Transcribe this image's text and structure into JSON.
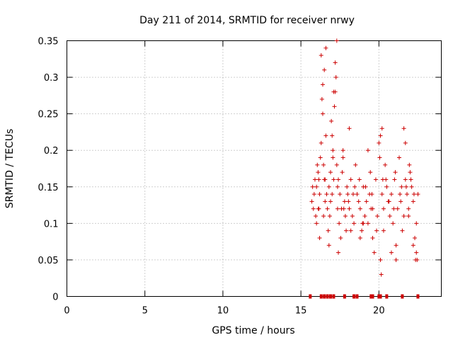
{
  "chart_data": {
    "type": "scatter",
    "title": "Day 211 of 2014, SRMTID for receiver nrwy",
    "xlabel": "GPS time / hours",
    "ylabel": "SRMTID / TECUs",
    "xlim": [
      0,
      24
    ],
    "ylim": [
      0,
      0.35
    ],
    "x_ticks": [
      0,
      5,
      10,
      15,
      20
    ],
    "y_ticks": [
      0,
      0.05,
      0.1,
      0.15,
      0.2,
      0.25,
      0.3,
      0.35
    ],
    "x_tick_labels": [
      "0",
      "5",
      "10",
      "15",
      "20"
    ],
    "y_tick_labels": [
      "0",
      "0.05",
      "0.1",
      "0.15",
      "0.2",
      "0.25",
      "0.3",
      "0.35"
    ],
    "grid": true,
    "marker": "+",
    "color": "#cc0000",
    "baseline_color": "#cc0000",
    "baseline_x": [
      15.6,
      16.3,
      16.5,
      16.7,
      16.9,
      17.1,
      17.8,
      18.4,
      18.6,
      19.5,
      19.6,
      20.0,
      20.1,
      20.5,
      21.5,
      22.5
    ],
    "series": [
      {
        "name": "SRMTID",
        "x": [
          15.7,
          15.8,
          15.85,
          15.9,
          15.95,
          16.0,
          16.05,
          16.1,
          16.12,
          16.15,
          16.2,
          16.25,
          16.3,
          16.35,
          16.4,
          16.45,
          16.5,
          16.55,
          16.6,
          16.65,
          16.7,
          16.75,
          16.8,
          16.85,
          16.9,
          16.95,
          17.0,
          17.05,
          17.1,
          17.15,
          17.2,
          17.25,
          17.3,
          17.35,
          17.4,
          17.45,
          17.5,
          17.55,
          17.6,
          17.7,
          17.8,
          17.85,
          17.9,
          17.95,
          18.0,
          18.1,
          18.2,
          18.3,
          18.4,
          18.5,
          18.6,
          18.7,
          18.8,
          18.9,
          19.0,
          19.1,
          19.2,
          19.3,
          19.4,
          19.5,
          19.6,
          19.7,
          19.8,
          19.9,
          20.0,
          20.05,
          20.1,
          20.15,
          20.2,
          20.3,
          20.4,
          20.5,
          20.6,
          20.7,
          20.8,
          20.9,
          21.0,
          21.1,
          21.2,
          21.3,
          21.4,
          21.5,
          21.6,
          21.7,
          21.8,
          21.9,
          22.0,
          22.1,
          22.2,
          22.3,
          22.4,
          22.5,
          16.3,
          16.6,
          17.2,
          17.3,
          17.1,
          16.5,
          16.4,
          17.0,
          18.1,
          19.3,
          20.1,
          20.2,
          21.6,
          21.7,
          16.0,
          16.2,
          16.8,
          17.4,
          17.7,
          18.2,
          18.8,
          19.0,
          19.6,
          20.3,
          20.8,
          21.1,
          21.9,
          22.2,
          22.35,
          22.45,
          15.75,
          16.15,
          16.55,
          17.65,
          18.05,
          18.45,
          18.95,
          19.45,
          19.85,
          20.45,
          20.95,
          21.45,
          21.95,
          22.25,
          16.45,
          16.9,
          17.05,
          17.35,
          17.75,
          18.35,
          18.75,
          19.15,
          19.55,
          20.25,
          20.65,
          21.05,
          21.35,
          21.75,
          22.05,
          22.4
        ],
        "y": [
          0.13,
          0.12,
          0.14,
          0.16,
          0.11,
          0.15,
          0.18,
          0.17,
          0.12,
          0.16,
          0.14,
          0.19,
          0.21,
          0.27,
          0.29,
          0.18,
          0.16,
          0.13,
          0.22,
          0.14,
          0.12,
          0.09,
          0.15,
          0.11,
          0.13,
          0.24,
          0.14,
          0.2,
          0.16,
          0.26,
          0.28,
          0.3,
          0.18,
          0.12,
          0.16,
          0.1,
          0.14,
          0.08,
          0.12,
          0.19,
          0.13,
          0.11,
          0.09,
          0.15,
          0.14,
          0.12,
          0.16,
          0.11,
          0.1,
          0.18,
          0.14,
          0.13,
          0.12,
          0.09,
          0.15,
          0.11,
          0.13,
          0.1,
          0.14,
          0.12,
          0.08,
          0.06,
          0.16,
          0.11,
          0.21,
          0.19,
          0.05,
          0.03,
          0.14,
          0.12,
          0.18,
          0.15,
          0.13,
          0.11,
          0.14,
          0.1,
          0.16,
          0.07,
          0.12,
          0.19,
          0.13,
          0.09,
          0.11,
          0.16,
          0.14,
          0.12,
          0.17,
          0.15,
          0.13,
          0.08,
          0.06,
          0.14,
          0.33,
          0.34,
          0.32,
          0.35,
          0.28,
          0.31,
          0.25,
          0.22,
          0.23,
          0.2,
          0.22,
          0.23,
          0.23,
          0.21,
          0.1,
          0.08,
          0.07,
          0.06,
          0.2,
          0.09,
          0.08,
          0.1,
          0.12,
          0.09,
          0.06,
          0.05,
          0.11,
          0.07,
          0.05,
          0.05,
          0.15,
          0.12,
          0.16,
          0.17,
          0.13,
          0.15,
          0.1,
          0.17,
          0.09,
          0.16,
          0.12,
          0.15,
          0.18,
          0.14,
          0.11,
          0.17,
          0.19,
          0.15,
          0.12,
          0.14,
          0.16,
          0.15,
          0.14,
          0.16,
          0.13,
          0.17,
          0.14,
          0.15,
          0.16,
          0.1
        ]
      }
    ]
  }
}
